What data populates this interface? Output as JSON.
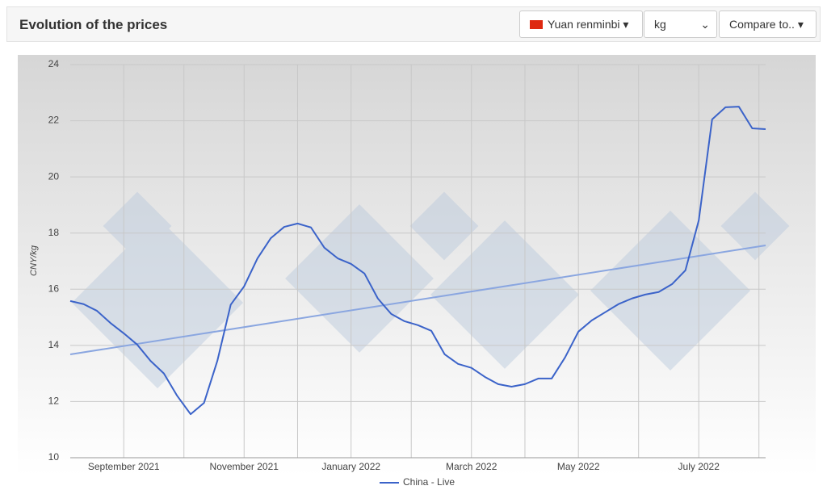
{
  "header": {
    "title": "Evolution of the prices",
    "controls": [
      "Yuan renminbi",
      "kg",
      "Compare to.."
    ]
  },
  "chart_data": {
    "type": "line",
    "y_label": "CNY/kg",
    "categories": [
      null,
      null,
      null,
      null,
      "September 2021",
      null,
      null,
      null,
      null,
      null,
      null,
      null,
      null,
      "November 2021",
      null,
      null,
      null,
      null,
      null,
      null,
      null,
      "January 2022",
      null,
      null,
      null,
      null,
      null,
      null,
      null,
      null,
      "March 2022",
      null,
      null,
      null,
      null,
      null,
      null,
      null,
      "May 2022",
      null,
      null,
      null,
      null,
      null,
      null,
      null,
      null,
      "July 2022",
      null,
      null,
      null,
      null,
      null
    ],
    "series": [
      {
        "name": "China - Live",
        "color": "#3b63c9",
        "values": [
          15.58,
          15.47,
          15.23,
          14.8,
          14.43,
          14.03,
          13.45,
          13.0,
          12.2,
          11.55,
          11.95,
          13.45,
          15.45,
          16.1,
          17.1,
          17.82,
          18.22,
          18.34,
          18.2,
          17.48,
          17.1,
          16.9,
          16.56,
          15.67,
          15.12,
          14.86,
          14.72,
          14.52,
          13.68,
          13.34,
          13.2,
          12.88,
          12.62,
          12.53,
          12.62,
          12.82,
          12.82,
          13.57,
          14.49,
          14.89,
          15.18,
          15.47,
          15.67,
          15.81,
          15.9,
          16.18,
          16.67,
          18.45,
          22.05,
          22.48,
          22.5,
          21.73,
          21.7
        ]
      }
    ],
    "trend_values": [
      13.68,
      17.56
    ],
    "trend_color": "#8aa6e0",
    "ylim": [
      10,
      24
    ],
    "yticks": [
      10,
      12,
      14,
      16,
      18,
      20,
      22,
      24
    ],
    "grid": true,
    "legend": "bottom"
  }
}
